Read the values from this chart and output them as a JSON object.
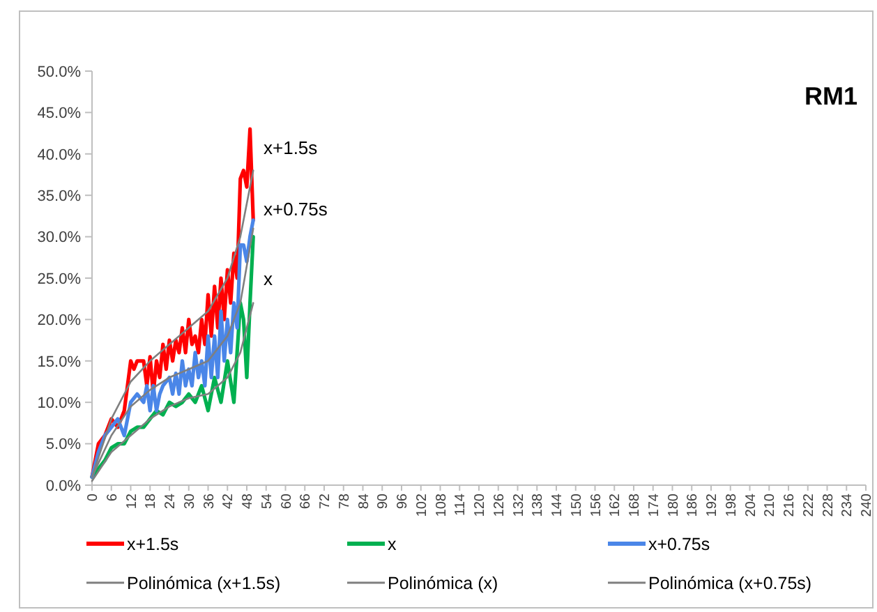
{
  "chart_data": {
    "type": "line",
    "title": "RM1",
    "xlim": [
      0,
      240
    ],
    "xticks": [
      0,
      6,
      12,
      18,
      24,
      30,
      36,
      42,
      48,
      54,
      60,
      66,
      72,
      78,
      84,
      90,
      96,
      102,
      108,
      114,
      120,
      126,
      132,
      138,
      144,
      150,
      156,
      162,
      168,
      174,
      180,
      186,
      192,
      198,
      204,
      210,
      216,
      222,
      228,
      234,
      240
    ],
    "ylim": [
      0,
      50
    ],
    "yticks": [
      {
        "value": 0,
        "label": "0.0%"
      },
      {
        "value": 5,
        "label": "5.0%"
      },
      {
        "value": 10,
        "label": "10.0%"
      },
      {
        "value": 15,
        "label": "15.0%"
      },
      {
        "value": 20,
        "label": "20.0%"
      },
      {
        "value": 25,
        "label": "25.0%"
      },
      {
        "value": 30,
        "label": "30.0%"
      },
      {
        "value": 35,
        "label": "35.0%"
      },
      {
        "value": 40,
        "label": "40.0%"
      },
      {
        "value": 45,
        "label": "45.0%"
      },
      {
        "value": 50,
        "label": "50.0%"
      }
    ],
    "grid": false,
    "legend": "bottom",
    "marker": "none",
    "line_style": "solid",
    "series": [
      {
        "name": "x+1.5s",
        "color": "#ff0000",
        "x": [
          0,
          2,
          4,
          6,
          8,
          10,
          12,
          13,
          14,
          16,
          17,
          18,
          19,
          20,
          21,
          22,
          23,
          24,
          25,
          26,
          27,
          28,
          29,
          30,
          31,
          32,
          33,
          34,
          35,
          36,
          37,
          38,
          39,
          40,
          41,
          42,
          43,
          44,
          45,
          46,
          47,
          48,
          49,
          50
        ],
        "values": [
          1,
          5,
          6,
          8,
          7,
          9,
          15,
          14,
          15,
          15,
          12,
          15.5,
          11,
          15,
          13,
          17,
          14,
          17.5,
          15,
          17.5,
          16,
          19,
          16,
          20,
          17,
          18,
          16,
          20,
          17,
          23,
          18,
          24,
          19,
          25,
          20,
          26,
          22,
          28,
          25,
          37,
          38,
          36,
          43,
          32
        ]
      },
      {
        "name": "x",
        "color": "#00b050",
        "x": [
          0,
          2,
          4,
          6,
          8,
          10,
          12,
          14,
          16,
          18,
          20,
          22,
          24,
          26,
          28,
          30,
          32,
          34,
          36,
          38,
          40,
          42,
          44,
          46,
          47,
          48,
          49,
          50
        ],
        "values": [
          1,
          2,
          3,
          4.5,
          5,
          5,
          6.5,
          7,
          7,
          8,
          9,
          8.5,
          10,
          9.5,
          10,
          11,
          10,
          12,
          9,
          13,
          10,
          15,
          10,
          22,
          20,
          13,
          22,
          30
        ]
      },
      {
        "name": "x+0.75s",
        "color": "#4a86e8",
        "x": [
          0,
          2,
          4,
          6,
          8,
          10,
          12,
          14,
          16,
          17,
          18,
          19,
          20,
          21,
          22,
          24,
          25,
          26,
          27,
          28,
          29,
          30,
          31,
          32,
          33,
          34,
          35,
          36,
          37,
          38,
          39,
          40,
          41,
          42,
          43,
          44,
          45,
          46,
          47,
          48,
          49,
          50
        ],
        "values": [
          1,
          4,
          6,
          7,
          8,
          6,
          10,
          11,
          10,
          12,
          9,
          12,
          9,
          11,
          12,
          13,
          11,
          13.5,
          11,
          15,
          12,
          14,
          12,
          16,
          13,
          15,
          12,
          18,
          13,
          18,
          13,
          21,
          15,
          20,
          16,
          22,
          19,
          29,
          29,
          27,
          30,
          32
        ]
      },
      {
        "name": "Polinómica (x+1.5s)",
        "color": "#7f7f7f",
        "x": [
          0,
          6,
          12,
          18,
          24,
          30,
          36,
          42,
          46,
          50
        ],
        "values": [
          1,
          8,
          12.5,
          15,
          17,
          19,
          21,
          25,
          30,
          38
        ]
      },
      {
        "name": "Polinómica (x)",
        "color": "#7f7f7f",
        "x": [
          0,
          6,
          12,
          18,
          24,
          30,
          36,
          42,
          46,
          50
        ],
        "values": [
          0.5,
          4,
          6,
          8,
          9.5,
          10.5,
          11,
          13,
          16,
          22
        ]
      },
      {
        "name": "Polinómica (x+0.75s)",
        "color": "#7f7f7f",
        "x": [
          0,
          6,
          12,
          18,
          24,
          30,
          36,
          42,
          46,
          50
        ],
        "values": [
          1,
          6,
          9.5,
          11.5,
          13,
          14,
          15,
          18,
          22,
          31
        ]
      }
    ],
    "annotations": [
      "x+1.5s",
      "x+0.75s",
      "x"
    ]
  }
}
